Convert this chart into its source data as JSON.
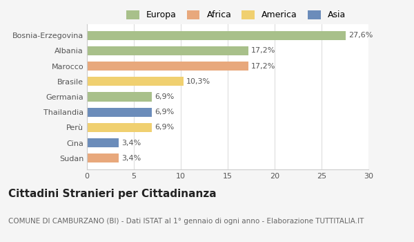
{
  "categories": [
    "Bosnia-Erzegovina",
    "Albania",
    "Marocco",
    "Brasile",
    "Germania",
    "Thailandia",
    "Perù",
    "Cina",
    "Sudan"
  ],
  "values": [
    27.6,
    17.2,
    17.2,
    10.3,
    6.9,
    6.9,
    6.9,
    3.4,
    3.4
  ],
  "labels": [
    "27,6%",
    "17,2%",
    "17,2%",
    "10,3%",
    "6,9%",
    "6,9%",
    "6,9%",
    "3,4%",
    "3,4%"
  ],
  "colors": [
    "#a8c08a",
    "#a8c08a",
    "#e8a87c",
    "#f0d070",
    "#a8c08a",
    "#6b8cba",
    "#f0d070",
    "#6b8cba",
    "#e8a87c"
  ],
  "legend_labels": [
    "Europa",
    "Africa",
    "America",
    "Asia"
  ],
  "legend_colors": [
    "#a8c08a",
    "#e8a87c",
    "#f0d070",
    "#6b8cba"
  ],
  "title": "Cittadini Stranieri per Cittadinanza",
  "subtitle": "COMUNE DI CAMBURZANO (BI) - Dati ISTAT al 1° gennaio di ogni anno - Elaborazione TUTTITALIA.IT",
  "xlim": [
    0,
    30
  ],
  "xticks": [
    0,
    5,
    10,
    15,
    20,
    25,
    30
  ],
  "bg_color": "#f5f5f5",
  "bar_bg_color": "#ffffff",
  "label_fontsize": 8,
  "ytick_fontsize": 8,
  "xtick_fontsize": 8,
  "title_fontsize": 11,
  "subtitle_fontsize": 7.5
}
